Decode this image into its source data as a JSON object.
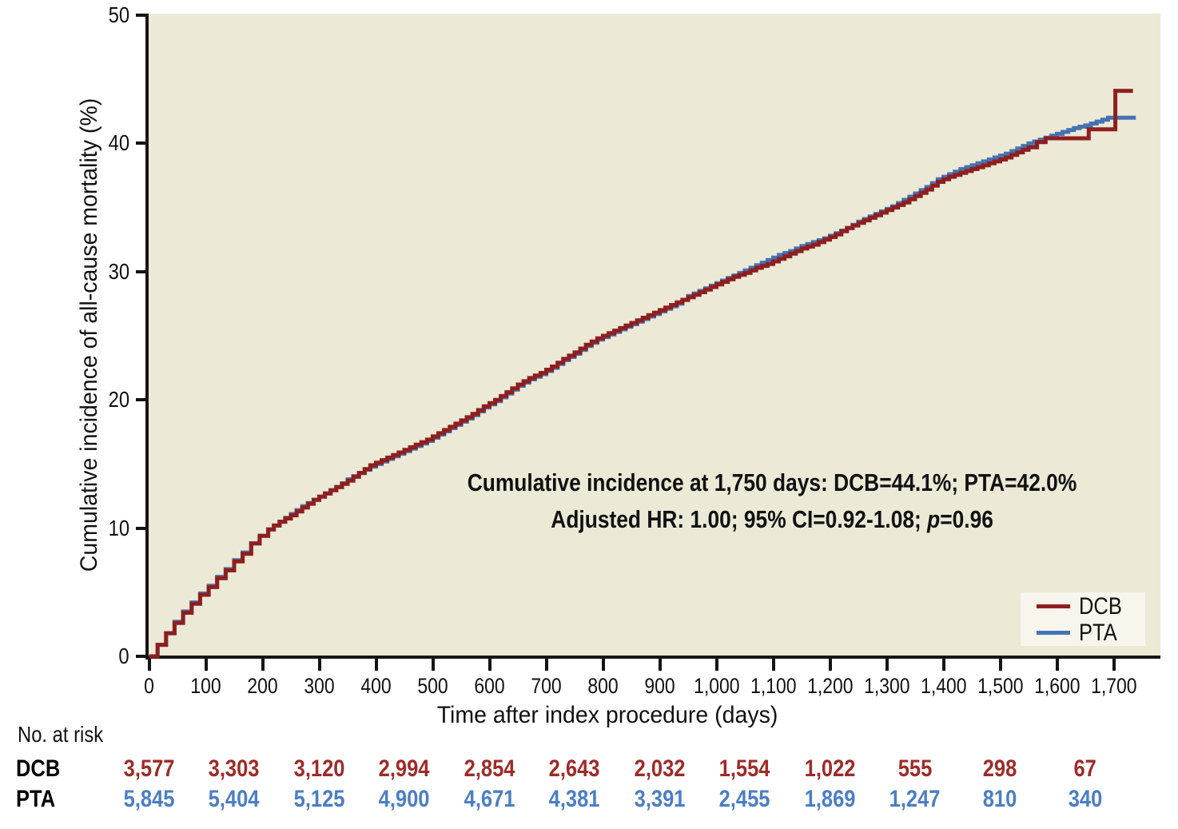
{
  "figure": {
    "background": "#FFFFFF",
    "plot_background": "#ECE9D6",
    "axis_color": "#141414"
  },
  "chart_data": {
    "type": "line",
    "subtype": "cumulative-incidence-step-curves",
    "title": "",
    "xlabel": "Time after index procedure (days)",
    "ylabel": "Cumulative incidence of all-cause mortality (%)",
    "xlim": [
      0,
      1780
    ],
    "ylim": [
      0,
      50
    ],
    "grid": false,
    "x_ticks": [
      0,
      100,
      200,
      300,
      400,
      500,
      600,
      700,
      800,
      900,
      1000,
      1100,
      1200,
      1300,
      1400,
      1500,
      1600,
      1700
    ],
    "x_tick_labels": [
      "0",
      "100",
      "200",
      "300",
      "400",
      "500",
      "600",
      "700",
      "800",
      "900",
      "1,000",
      "1,100",
      "1,200",
      "1,300",
      "1,400",
      "1,500",
      "1,600",
      "1,700"
    ],
    "y_ticks": [
      0,
      10,
      20,
      30,
      40,
      50
    ],
    "y_tick_labels": [
      "0",
      "10",
      "20",
      "30",
      "40",
      "50"
    ],
    "annotation": {
      "line1": "Cumulative incidence at 1,750 days: DCB=44.1%; PTA=42.0%",
      "line2_prefix": "Adjusted HR: 1.00; 95% CI=0.92-1.08; ",
      "line2_italic": "p",
      "line2_suffix": "=0.96"
    },
    "legend": {
      "position": "inside-bottom-right",
      "background": "#F8F6EC",
      "entries": [
        {
          "label": "DCB",
          "color": "#8E1F1F"
        },
        {
          "label": "PTA",
          "color": "#4473B5"
        }
      ]
    },
    "series": [
      {
        "name": "DCB",
        "color": "#8E1F1F",
        "line_width": 5,
        "points": [
          [
            0,
            0
          ],
          [
            15,
            0.9
          ],
          [
            30,
            1.8
          ],
          [
            45,
            2.6
          ],
          [
            60,
            3.4
          ],
          [
            75,
            4.1
          ],
          [
            90,
            4.8
          ],
          [
            105,
            5.4
          ],
          [
            120,
            6.1
          ],
          [
            135,
            6.7
          ],
          [
            150,
            7.4
          ],
          [
            165,
            8.0
          ],
          [
            180,
            8.8
          ],
          [
            195,
            9.4
          ],
          [
            210,
            9.9
          ],
          [
            230,
            10.5
          ],
          [
            250,
            11.0
          ],
          [
            270,
            11.6
          ],
          [
            290,
            12.2
          ],
          [
            310,
            12.7
          ],
          [
            330,
            13.2
          ],
          [
            350,
            13.7
          ],
          [
            370,
            14.3
          ],
          [
            390,
            14.9
          ],
          [
            410,
            15.3
          ],
          [
            430,
            15.7
          ],
          [
            450,
            16.1
          ],
          [
            470,
            16.5
          ],
          [
            490,
            16.9
          ],
          [
            510,
            17.4
          ],
          [
            530,
            17.9
          ],
          [
            550,
            18.4
          ],
          [
            570,
            18.9
          ],
          [
            590,
            19.5
          ],
          [
            610,
            20.0
          ],
          [
            630,
            20.6
          ],
          [
            650,
            21.2
          ],
          [
            670,
            21.7
          ],
          [
            690,
            22.1
          ],
          [
            710,
            22.6
          ],
          [
            730,
            23.2
          ],
          [
            750,
            23.7
          ],
          [
            770,
            24.3
          ],
          [
            790,
            24.8
          ],
          [
            810,
            25.2
          ],
          [
            830,
            25.6
          ],
          [
            850,
            26.0
          ],
          [
            870,
            26.4
          ],
          [
            890,
            26.8
          ],
          [
            910,
            27.2
          ],
          [
            930,
            27.6
          ],
          [
            950,
            28.0
          ],
          [
            970,
            28.4
          ],
          [
            990,
            28.8
          ],
          [
            1010,
            29.2
          ],
          [
            1030,
            29.6
          ],
          [
            1050,
            29.9
          ],
          [
            1070,
            30.3
          ],
          [
            1090,
            30.6
          ],
          [
            1110,
            31.0
          ],
          [
            1130,
            31.4
          ],
          [
            1150,
            31.8
          ],
          [
            1170,
            32.1
          ],
          [
            1190,
            32.5
          ],
          [
            1210,
            32.9
          ],
          [
            1230,
            33.4
          ],
          [
            1250,
            33.8
          ],
          [
            1270,
            34.2
          ],
          [
            1290,
            34.6
          ],
          [
            1310,
            35.0
          ],
          [
            1330,
            35.4
          ],
          [
            1350,
            35.9
          ],
          [
            1370,
            36.4
          ],
          [
            1390,
            37.0
          ],
          [
            1410,
            37.4
          ],
          [
            1430,
            37.7
          ],
          [
            1450,
            38.0
          ],
          [
            1470,
            38.3
          ],
          [
            1490,
            38.6
          ],
          [
            1510,
            38.9
          ],
          [
            1530,
            39.3
          ],
          [
            1550,
            39.7
          ],
          [
            1565,
            40.1
          ],
          [
            1580,
            40.4
          ],
          [
            1653,
            40.4
          ],
          [
            1656,
            41.1
          ],
          [
            1699,
            41.1
          ],
          [
            1703,
            44.1
          ],
          [
            1734,
            44.1
          ]
        ]
      },
      {
        "name": "PTA",
        "color": "#4473B5",
        "line_width": 5,
        "points": [
          [
            0,
            0
          ],
          [
            15,
            0.9
          ],
          [
            30,
            1.8
          ],
          [
            45,
            2.7
          ],
          [
            60,
            3.5
          ],
          [
            75,
            4.2
          ],
          [
            90,
            4.9
          ],
          [
            105,
            5.5
          ],
          [
            120,
            6.2
          ],
          [
            135,
            6.8
          ],
          [
            150,
            7.5
          ],
          [
            165,
            8.1
          ],
          [
            180,
            8.8
          ],
          [
            195,
            9.4
          ],
          [
            210,
            9.9
          ],
          [
            230,
            10.5
          ],
          [
            250,
            11.1
          ],
          [
            270,
            11.7
          ],
          [
            290,
            12.2
          ],
          [
            310,
            12.7
          ],
          [
            330,
            13.2
          ],
          [
            350,
            13.8
          ],
          [
            370,
            14.3
          ],
          [
            390,
            14.8
          ],
          [
            410,
            15.2
          ],
          [
            430,
            15.6
          ],
          [
            450,
            16.0
          ],
          [
            470,
            16.4
          ],
          [
            490,
            16.8
          ],
          [
            510,
            17.3
          ],
          [
            530,
            17.8
          ],
          [
            550,
            18.3
          ],
          [
            570,
            18.8
          ],
          [
            590,
            19.4
          ],
          [
            610,
            19.9
          ],
          [
            630,
            20.5
          ],
          [
            650,
            21.1
          ],
          [
            670,
            21.6
          ],
          [
            690,
            22.0
          ],
          [
            710,
            22.5
          ],
          [
            730,
            23.1
          ],
          [
            750,
            23.6
          ],
          [
            770,
            24.2
          ],
          [
            790,
            24.7
          ],
          [
            810,
            25.1
          ],
          [
            830,
            25.5
          ],
          [
            850,
            25.9
          ],
          [
            870,
            26.3
          ],
          [
            890,
            26.7
          ],
          [
            910,
            27.1
          ],
          [
            930,
            27.5
          ],
          [
            950,
            28.1
          ],
          [
            970,
            28.5
          ],
          [
            990,
            28.9
          ],
          [
            1010,
            29.3
          ],
          [
            1030,
            29.7
          ],
          [
            1050,
            30.1
          ],
          [
            1070,
            30.5
          ],
          [
            1090,
            30.9
          ],
          [
            1110,
            31.3
          ],
          [
            1130,
            31.6
          ],
          [
            1150,
            32.0
          ],
          [
            1170,
            32.3
          ],
          [
            1190,
            32.6
          ],
          [
            1210,
            33.0
          ],
          [
            1230,
            33.4
          ],
          [
            1250,
            33.9
          ],
          [
            1270,
            34.3
          ],
          [
            1290,
            34.7
          ],
          [
            1310,
            35.1
          ],
          [
            1330,
            35.6
          ],
          [
            1350,
            36.1
          ],
          [
            1370,
            36.6
          ],
          [
            1390,
            37.2
          ],
          [
            1410,
            37.6
          ],
          [
            1430,
            38.0
          ],
          [
            1450,
            38.3
          ],
          [
            1470,
            38.6
          ],
          [
            1490,
            38.9
          ],
          [
            1510,
            39.2
          ],
          [
            1530,
            39.6
          ],
          [
            1550,
            40.0
          ],
          [
            1570,
            40.3
          ],
          [
            1590,
            40.6
          ],
          [
            1610,
            40.9
          ],
          [
            1630,
            41.2
          ],
          [
            1650,
            41.4
          ],
          [
            1670,
            41.7
          ],
          [
            1690,
            42.0
          ],
          [
            1739,
            42.0
          ]
        ]
      }
    ]
  },
  "risk_table": {
    "title": "No. at risk",
    "days": [
      0,
      150,
      300,
      450,
      600,
      750,
      900,
      1050,
      1200,
      1350,
      1500,
      1650
    ],
    "rows": [
      {
        "label": "DCB",
        "label_color": "#000000",
        "value_color": "#9E2B28",
        "values": [
          "3,577",
          "3,303",
          "3,120",
          "2,994",
          "2,854",
          "2,643",
          "2,032",
          "1,554",
          "1,022",
          "555",
          "298",
          "67"
        ]
      },
      {
        "label": "PTA",
        "label_color": "#000000",
        "value_color": "#4B7EC4",
        "values": [
          "5,845",
          "5,404",
          "5,125",
          "4,900",
          "4,671",
          "4,381",
          "3,391",
          "2,455",
          "1,869",
          "1,247",
          "810",
          "340"
        ]
      }
    ]
  }
}
